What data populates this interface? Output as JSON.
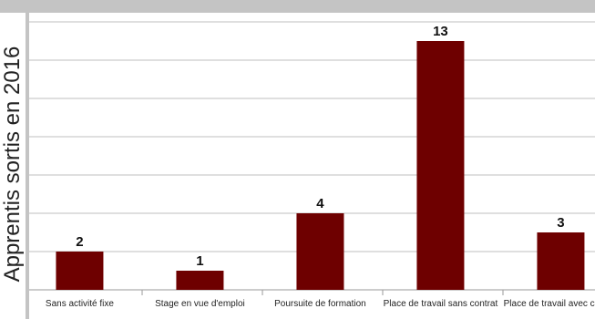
{
  "chart_data": {
    "type": "bar",
    "title": "",
    "xlabel": "",
    "ylabel": "Apprentis sortis en 2016",
    "categories": [
      "Sans activité fixe",
      "Stage en vue d'emploi",
      "Poursuite de formation",
      "Place de travail sans contrat",
      "Place de travail avec contrat"
    ],
    "values": [
      2,
      1,
      4,
      13,
      3
    ],
    "ylim": [
      0,
      14
    ],
    "grid": true,
    "bar_color": "#6e0000",
    "grid_color": "#bfbfbf"
  }
}
